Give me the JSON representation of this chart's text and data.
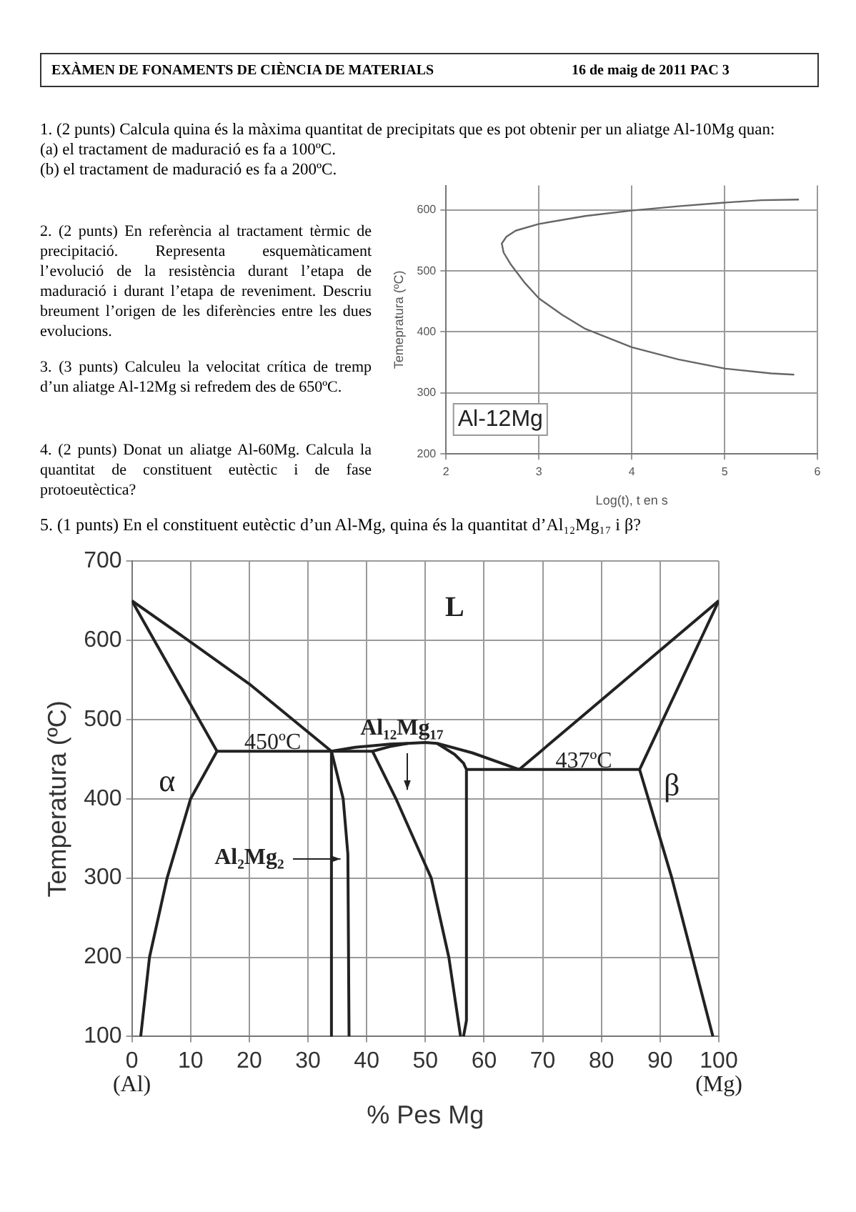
{
  "chart_data": [
    {
      "type": "line",
      "xlabel": "Log(t), t en s",
      "ylabel": "Temepratura (ºC)",
      "xlim": [
        2,
        6
      ],
      "ylim": [
        200,
        640
      ],
      "xticks": [
        2,
        3,
        4,
        5,
        6
      ],
      "yticks": [
        200,
        300,
        400,
        500,
        600
      ],
      "grid": true,
      "legend": false,
      "marker": "none",
      "line_style": "solid",
      "annotations": [
        "EXÀMEN DE FONAMENTS DE CIÈNCIA DE MATERIALS",
        "16 de maig de 2011  PAC 3",
        "1. (2 punts) Calcula quina és la màxima quantitat de precipitats que es pot obtenir per un aliatge Al-10Mg quan:\n(a) el tractament de maduració es fa a 100ºC.\n(b) el tractament de maduració es fa a 200ºC.",
        "2. (2 punts) En referència al tractament tèrmic de precipitació. Representa esquemàticament l’evolució de la resistència durant l’etapa de maduració i durant l’etapa de reveniment. Descriu breument l’origen de les diferències entre les dues evolucions.",
        "3. (3 punts) Calculeu la velocitat crítica de tremp d’un aliatge Al-12Mg si refredem des de 650ºC.",
        "4. (2 punts) Donat un aliatge Al-60Mg. Calcula la quantitat de constituent eutèctic i de fase protoeutèctica?",
        "Al-12Mg"
      ],
      "series": [
        {
          "color": "#666666",
          "x": [
            5.8,
            5.4,
            5,
            4.5,
            4,
            3.5,
            3,
            2.75,
            2.65,
            2.6,
            2.62,
            2.7,
            2.85,
            3,
            3.25,
            3.5,
            4,
            4.5,
            5,
            5.5,
            5.75
          ],
          "values": [
            617,
            616,
            612,
            606,
            599,
            590,
            577,
            566,
            556,
            545,
            530,
            510,
            480,
            455,
            428,
            405,
            375,
            355,
            340,
            332,
            330
          ]
        }
      ]
    },
    {
      "type": "line",
      "title": "5. (1 punts) En el constituent eutèctic d’un Al-Mg, quina és la quantitat d’Al₁₂Mg₁₇ i β?",
      "xlabel": "% Pes Mg",
      "ylabel": "Temperatura (ºC)",
      "xlim": [
        0,
        100
      ],
      "ylim": [
        100,
        700
      ],
      "xticks": [
        0,
        10,
        20,
        30,
        40,
        50,
        60,
        70,
        80,
        90,
        100
      ],
      "yticks": [
        100,
        200,
        300,
        400,
        500,
        600,
        700
      ],
      "grid": true,
      "legend": false,
      "marker": "none",
      "line_style": "solid",
      "annotations": [
        "L",
        "α",
        "450ºC",
        "437ºC",
        "β",
        "Al₁₂Mg₁₇",
        "Al₂Mg₂",
        "(Al)",
        "(Mg)"
      ],
      "series": [
        {
          "color": "#222222",
          "x": [
            0,
            10,
            20,
            34
          ],
          "values": [
            650,
            598,
            545,
            460
          ]
        },
        {
          "color": "#222222",
          "x": [
            0,
            14.5
          ],
          "values": [
            650,
            460
          ]
        },
        {
          "color": "#222222",
          "x": [
            14.5,
            10,
            6,
            3,
            1.5
          ],
          "values": [
            460,
            400,
            300,
            200,
            100
          ]
        },
        {
          "color": "#222222",
          "x": [
            14.5,
            34,
            41,
            44,
            47
          ],
          "values": [
            460,
            460,
            460,
            466,
            470
          ]
        },
        {
          "color": "#222222",
          "x": [
            34,
            34
          ],
          "values": [
            460,
            100
          ]
        },
        {
          "color": "#222222",
          "x": [
            34,
            36,
            36.8,
            37
          ],
          "values": [
            460,
            400,
            330,
            100
          ]
        },
        {
          "color": "#222222",
          "x": [
            34,
            38,
            44,
            47,
            50,
            52,
            58,
            66
          ],
          "values": [
            460,
            465,
            469,
            470,
            471,
            470,
            458,
            437
          ]
        },
        {
          "color": "#222222",
          "x": [
            52,
            55,
            56.5,
            57,
            57,
            56.5
          ],
          "values": [
            470,
            456,
            445,
            437,
            120,
            100
          ]
        },
        {
          "color": "#222222",
          "x": [
            41,
            45,
            48,
            51,
            54,
            56
          ],
          "values": [
            460,
            400,
            350,
            300,
            200,
            100
          ]
        },
        {
          "color": "#222222",
          "x": [
            57,
            86.5
          ],
          "values": [
            437,
            437
          ]
        },
        {
          "color": "#222222",
          "x": [
            66,
            100
          ],
          "values": [
            437,
            650
          ]
        },
        {
          "color": "#222222",
          "x": [
            86.5,
            100
          ],
          "values": [
            437,
            650
          ]
        },
        {
          "color": "#222222",
          "x": [
            86.5,
            88,
            92,
            95.5,
            99
          ],
          "values": [
            437,
            400,
            300,
            200,
            100
          ]
        }
      ]
    }
  ]
}
